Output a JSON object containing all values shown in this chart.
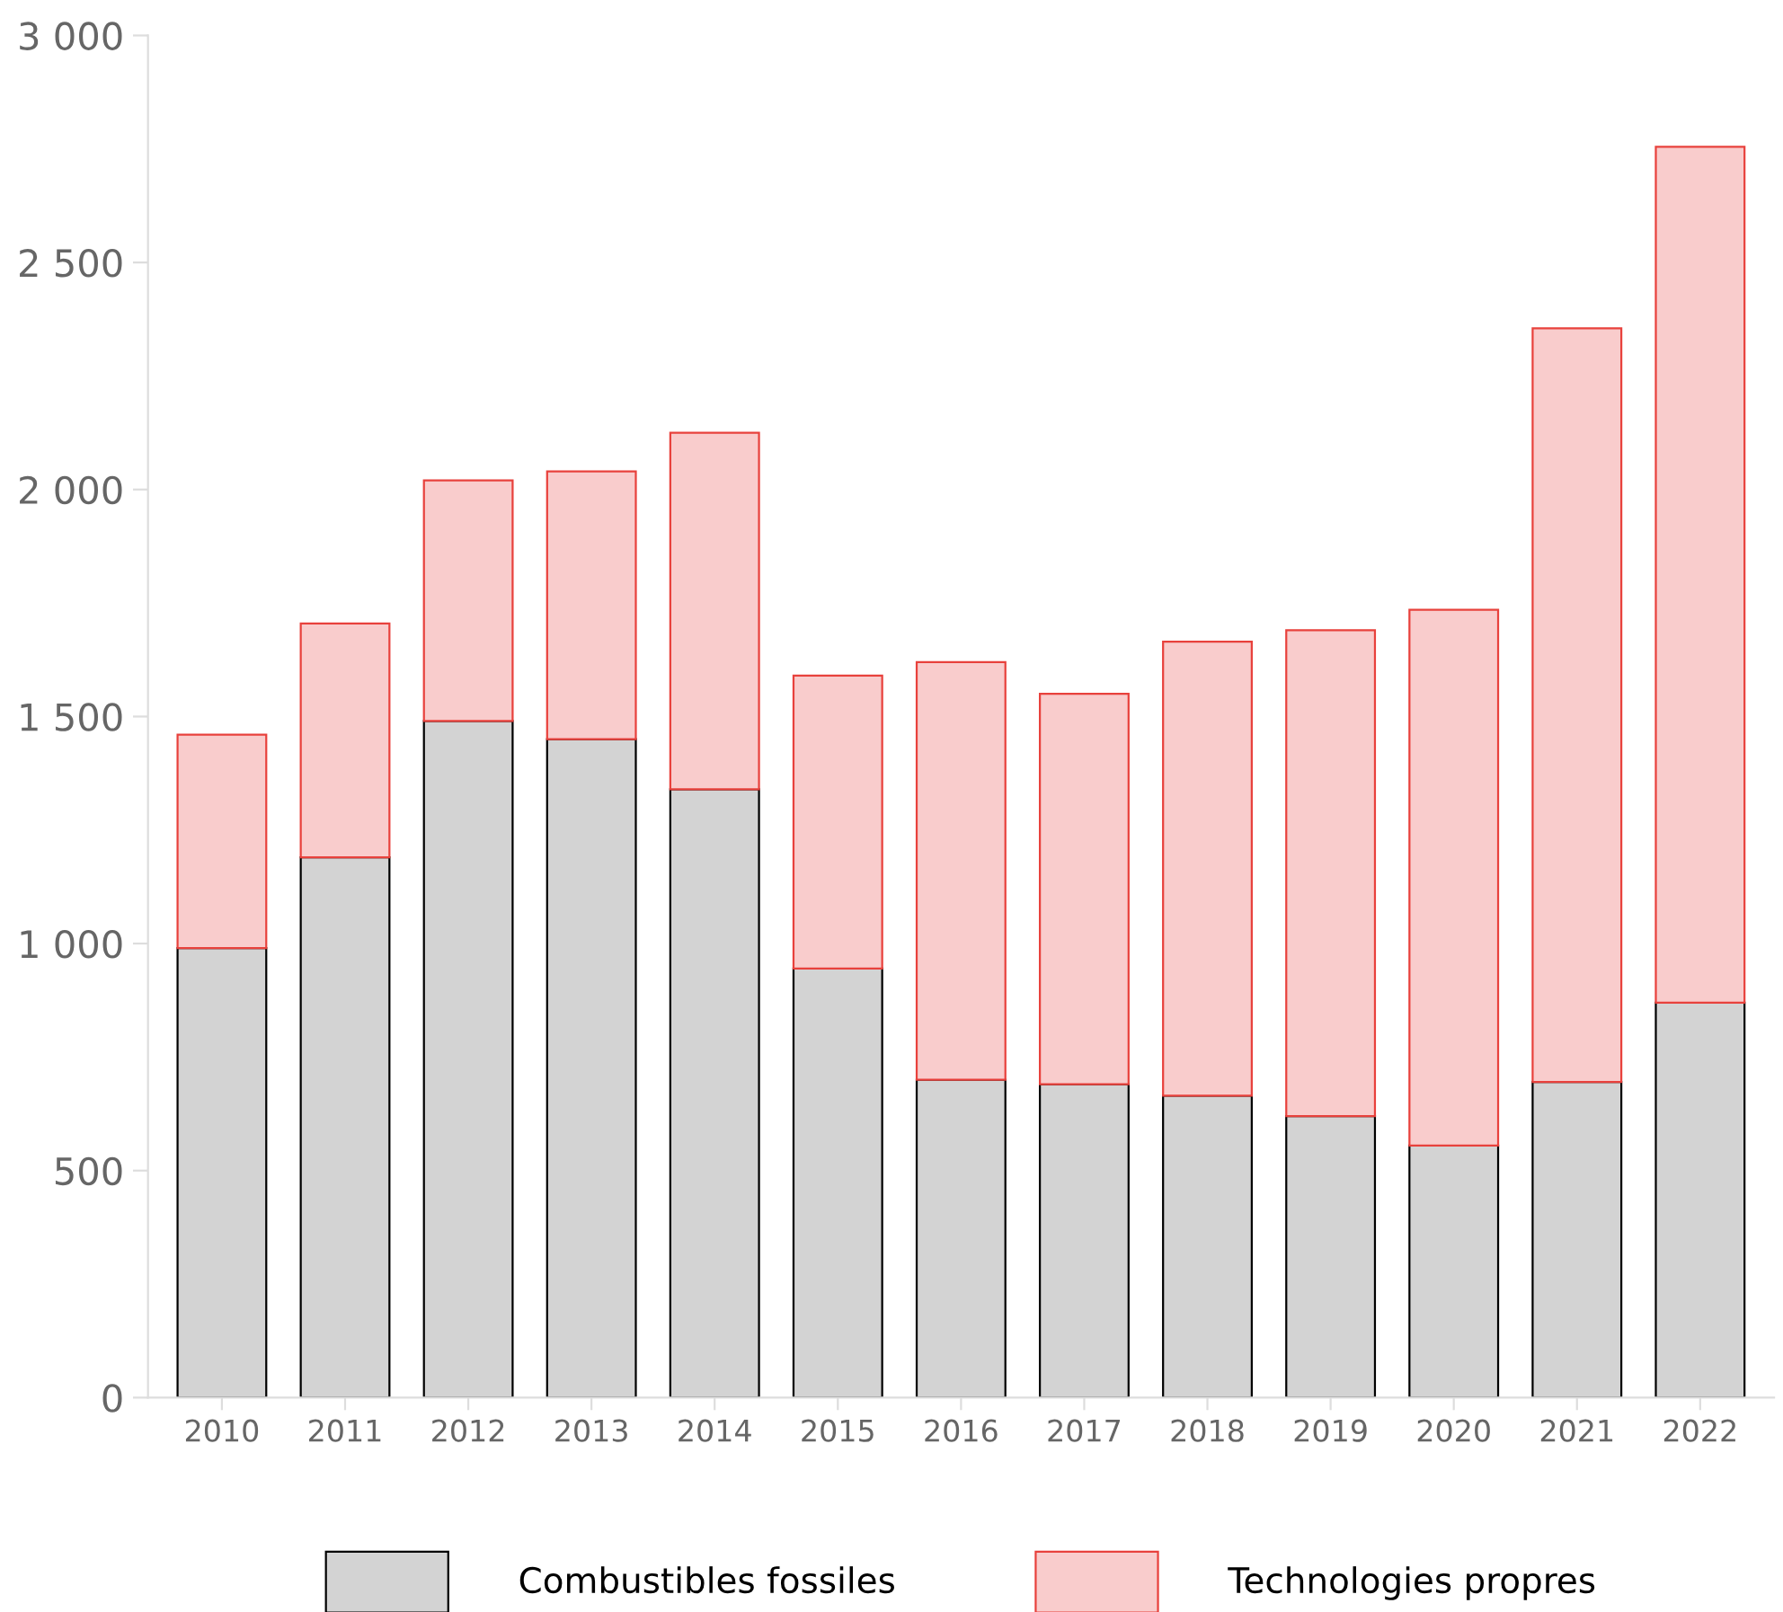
{
  "chart_data": {
    "type": "bar",
    "stacked": true,
    "categories": [
      "2010",
      "2011",
      "2012",
      "2013",
      "2014",
      "2015",
      "2016",
      "2017",
      "2018",
      "2019",
      "2020",
      "2021",
      "2022"
    ],
    "series": [
      {
        "name": "Combustibles fossiles",
        "color": "#d3d3d3",
        "values": [
          990,
          1190,
          1490,
          1450,
          1340,
          945,
          700,
          690,
          665,
          620,
          555,
          695,
          870
        ]
      },
      {
        "name": "Technologies propres",
        "color": "#f9cccc",
        "values": [
          470,
          515,
          530,
          590,
          785,
          645,
          920,
          860,
          1000,
          1070,
          1180,
          1660,
          1885
        ]
      }
    ],
    "ylim": [
      0,
      3000
    ],
    "yticks": [
      0,
      500,
      {
        "value": 1000,
        "label": "1 000"
      },
      {
        "value": 1500,
        "label": "1 500"
      },
      {
        "value": 2000,
        "label": "2 000"
      },
      {
        "value": 2500,
        "label": "2 500"
      },
      {
        "value": 3000,
        "label": "3 000"
      }
    ],
    "grid": false,
    "legend": "bottom"
  }
}
